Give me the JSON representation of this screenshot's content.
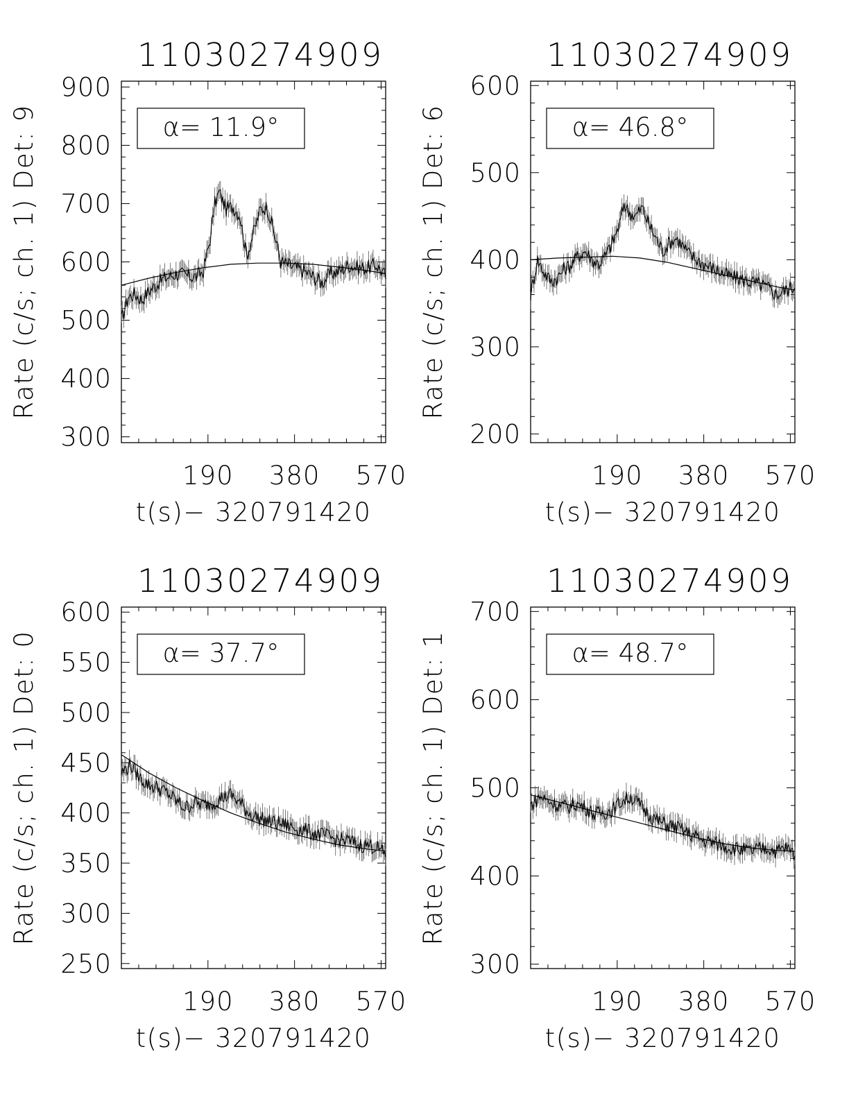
{
  "chart_data": [
    {
      "type": "line",
      "title": "11030274909",
      "xlabel": "t(s)− 320791420",
      "ylabel": "Rate (c/s; ch. 1) Det: 9",
      "annotation": "α= 11.9°",
      "xlim": [
        0,
        580
      ],
      "ylim": [
        290,
        910
      ],
      "xticks": [
        "190",
        "380",
        "570"
      ],
      "yticks": [
        "300",
        "400",
        "500",
        "600",
        "700",
        "800",
        "900"
      ],
      "grid": false,
      "series": [
        {
          "kind": "data",
          "x": [
            0,
            15,
            30,
            45,
            60,
            75,
            90,
            105,
            120,
            135,
            150,
            165,
            180,
            195,
            205,
            215,
            230,
            245,
            260,
            275,
            290,
            305,
            320,
            335,
            350,
            365,
            380,
            400,
            420,
            440,
            460,
            480,
            500,
            520,
            540,
            560,
            580
          ],
          "y": [
            500,
            540,
            545,
            535,
            550,
            560,
            570,
            575,
            580,
            578,
            575,
            575,
            585,
            640,
            700,
            720,
            690,
            695,
            680,
            610,
            650,
            690,
            695,
            650,
            600,
            595,
            590,
            585,
            575,
            565,
            580,
            585,
            595,
            590,
            590,
            595,
            575
          ]
        },
        {
          "kind": "fit",
          "x": [
            0,
            60,
            120,
            180,
            240,
            300,
            360,
            420,
            480,
            540,
            580
          ],
          "y": [
            560,
            572,
            582,
            590,
            596,
            598,
            598,
            596,
            591,
            585,
            580
          ]
        }
      ]
    },
    {
      "type": "line",
      "title": "11030274909",
      "xlabel": "t(s)− 320791420",
      "ylabel": "Rate (c/s; ch. 1) Det: 6",
      "annotation": "α= 46.8°",
      "xlim": [
        0,
        580
      ],
      "ylim": [
        190,
        605
      ],
      "xticks": [
        "190",
        "380",
        "570"
      ],
      "yticks": [
        "200",
        "300",
        "400",
        "500",
        "600"
      ],
      "grid": false,
      "series": [
        {
          "kind": "data",
          "x": [
            0,
            15,
            30,
            45,
            60,
            75,
            90,
            105,
            120,
            135,
            150,
            165,
            180,
            195,
            205,
            215,
            230,
            245,
            260,
            275,
            290,
            305,
            320,
            335,
            350,
            365,
            380,
            400,
            420,
            440,
            460,
            480,
            500,
            520,
            540,
            560,
            580
          ],
          "y": [
            360,
            400,
            385,
            375,
            380,
            390,
            395,
            405,
            410,
            400,
            395,
            405,
            420,
            440,
            465,
            455,
            450,
            460,
            440,
            425,
            410,
            420,
            425,
            415,
            405,
            400,
            395,
            390,
            385,
            380,
            378,
            375,
            372,
            368,
            360,
            365,
            370
          ]
        },
        {
          "kind": "fit",
          "x": [
            0,
            60,
            120,
            180,
            240,
            300,
            360,
            420,
            480,
            540,
            580
          ],
          "y": [
            400,
            402,
            403,
            404,
            402,
            397,
            390,
            383,
            376,
            369,
            365
          ]
        }
      ]
    },
    {
      "type": "line",
      "title": "11030274909",
      "xlabel": "t(s)− 320791420",
      "ylabel": "Rate (c/s; ch. 1) Det: 0",
      "annotation": "α= 37.7°",
      "xlim": [
        0,
        580
      ],
      "ylim": [
        245,
        605
      ],
      "xticks": [
        "190",
        "380",
        "570"
      ],
      "yticks": [
        "250",
        "300",
        "350",
        "400",
        "450",
        "500",
        "550",
        "600"
      ],
      "grid": false,
      "series": [
        {
          "kind": "data",
          "x": [
            0,
            20,
            40,
            60,
            80,
            100,
            120,
            140,
            160,
            180,
            200,
            220,
            240,
            260,
            280,
            300,
            320,
            340,
            360,
            380,
            400,
            420,
            440,
            460,
            480,
            500,
            520,
            540,
            560,
            580
          ],
          "y": [
            440,
            448,
            435,
            428,
            425,
            420,
            412,
            405,
            410,
            408,
            410,
            415,
            418,
            410,
            400,
            395,
            392,
            390,
            388,
            385,
            383,
            380,
            378,
            375,
            373,
            372,
            368,
            368,
            366,
            358
          ]
        },
        {
          "kind": "fit",
          "x": [
            0,
            60,
            120,
            180,
            240,
            300,
            360,
            420,
            480,
            540,
            580
          ],
          "y": [
            458,
            440,
            425,
            412,
            400,
            390,
            381,
            374,
            368,
            364,
            362
          ]
        }
      ]
    },
    {
      "type": "line",
      "title": "11030274909",
      "xlabel": "t(s)− 320791420",
      "ylabel": "Rate (c/s; ch. 1) Det: 1",
      "annotation": "α= 48.7°",
      "xlim": [
        0,
        580
      ],
      "ylim": [
        295,
        705
      ],
      "xticks": [
        "190",
        "380",
        "570"
      ],
      "yticks": [
        "300",
        "400",
        "500",
        "600",
        "700"
      ],
      "grid": false,
      "series": [
        {
          "kind": "data",
          "x": [
            0,
            20,
            40,
            60,
            80,
            100,
            120,
            140,
            160,
            180,
            200,
            220,
            240,
            260,
            280,
            300,
            320,
            340,
            360,
            380,
            400,
            420,
            440,
            460,
            480,
            500,
            520,
            540,
            560,
            580
          ],
          "y": [
            480,
            490,
            485,
            480,
            478,
            482,
            478,
            470,
            472,
            475,
            485,
            490,
            480,
            470,
            462,
            458,
            455,
            450,
            445,
            440,
            438,
            435,
            432,
            430,
            428,
            430,
            432,
            428,
            432,
            425
          ]
        },
        {
          "kind": "fit",
          "x": [
            0,
            60,
            120,
            180,
            240,
            300,
            360,
            420,
            480,
            540,
            580
          ],
          "y": [
            492,
            484,
            476,
            468,
            460,
            452,
            444,
            437,
            432,
            429,
            428
          ]
        }
      ]
    }
  ]
}
